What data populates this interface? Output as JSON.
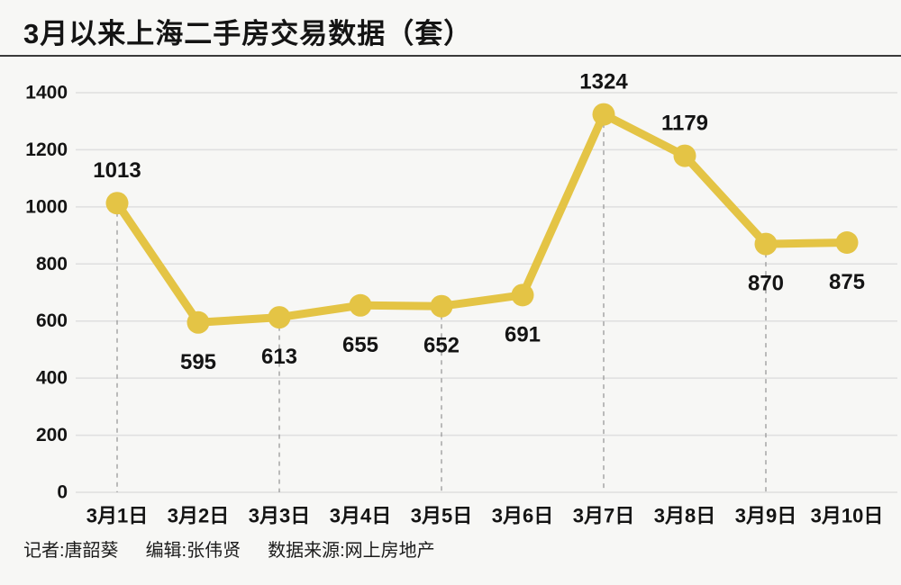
{
  "title": "3月以来上海二手房交易数据（套）",
  "footer": {
    "reporter": "记者:唐韶葵",
    "editor": "编辑:张伟贤",
    "source": "数据来源:网上房地产"
  },
  "chart_data": {
    "type": "line",
    "title": "3月以来上海二手房交易数据（套）",
    "categories": [
      "3月1日",
      "3月2日",
      "3月3日",
      "3月4日",
      "3月5日",
      "3月6日",
      "3月7日",
      "3月8日",
      "3月9日",
      "3月10日"
    ],
    "values": [
      1013,
      595,
      613,
      655,
      652,
      691,
      1324,
      1179,
      870,
      875
    ],
    "xlabel": "",
    "ylabel": "",
    "ylim": [
      0,
      1400
    ],
    "yticks": [
      0,
      200,
      400,
      600,
      800,
      1000,
      1200,
      1400
    ],
    "grid": true,
    "legend": "none",
    "label_positions": [
      "above",
      "below",
      "below",
      "below",
      "below",
      "below",
      "above",
      "above",
      "below",
      "below"
    ],
    "dashed_guide_categories": [
      "3月1日",
      "3月3日",
      "3月5日",
      "3月7日",
      "3月9日"
    ]
  },
  "colors": {
    "background": "#F7F7F5",
    "line": "#E4C445",
    "marker": "#E4C445",
    "grid": "#DFDFDF",
    "dash": "#999999",
    "text": "#141414",
    "title_rule": "#3A3A3A"
  }
}
